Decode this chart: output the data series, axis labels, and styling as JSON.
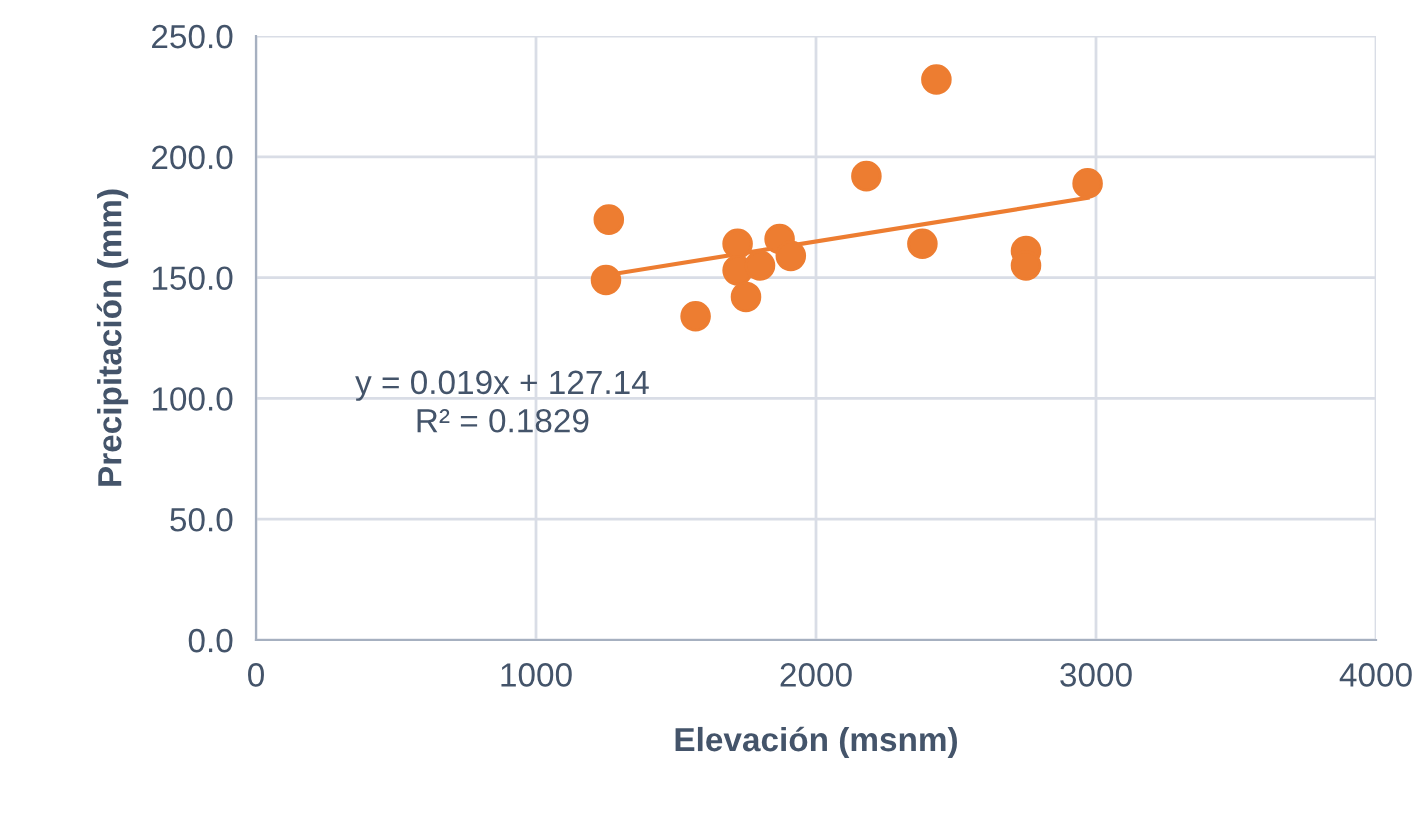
{
  "chart_data": {
    "type": "scatter",
    "xlabel": "Elevación (msnm)",
    "ylabel": "Precipitación (mm)",
    "xlim": [
      0,
      4000
    ],
    "xticks": [
      0,
      1000,
      2000,
      3000,
      4000
    ],
    "ylim": [
      0,
      250
    ],
    "yticks": [
      {
        "value": 0,
        "label": "0.0"
      },
      {
        "value": 50,
        "label": "50.0"
      },
      {
        "value": 100,
        "label": "100.0"
      },
      {
        "value": 150,
        "label": "150.0"
      },
      {
        "value": 200,
        "label": "200.0"
      },
      {
        "value": 250,
        "label": "250.0"
      }
    ],
    "grid": true,
    "marker": "circle",
    "series": [
      {
        "color": "#ed7d31",
        "x": [
          1260,
          1250,
          1570,
          1720,
          1720,
          1750,
          1800,
          1870,
          1910,
          2180,
          2430,
          2380,
          2750,
          2750,
          2970
        ],
        "values": [
          174,
          149,
          134,
          164,
          153,
          142,
          155,
          166,
          159,
          192,
          232,
          164,
          161,
          155,
          189
        ]
      },
      {
        "type": "line",
        "color": "#ed7d31",
        "marker": "none",
        "x": [
          1250,
          2970
        ],
        "values": [
          151,
          183
        ]
      }
    ],
    "annotations": [
      "y = 0.019x + 127.14\nR² = 0.1829"
    ]
  }
}
